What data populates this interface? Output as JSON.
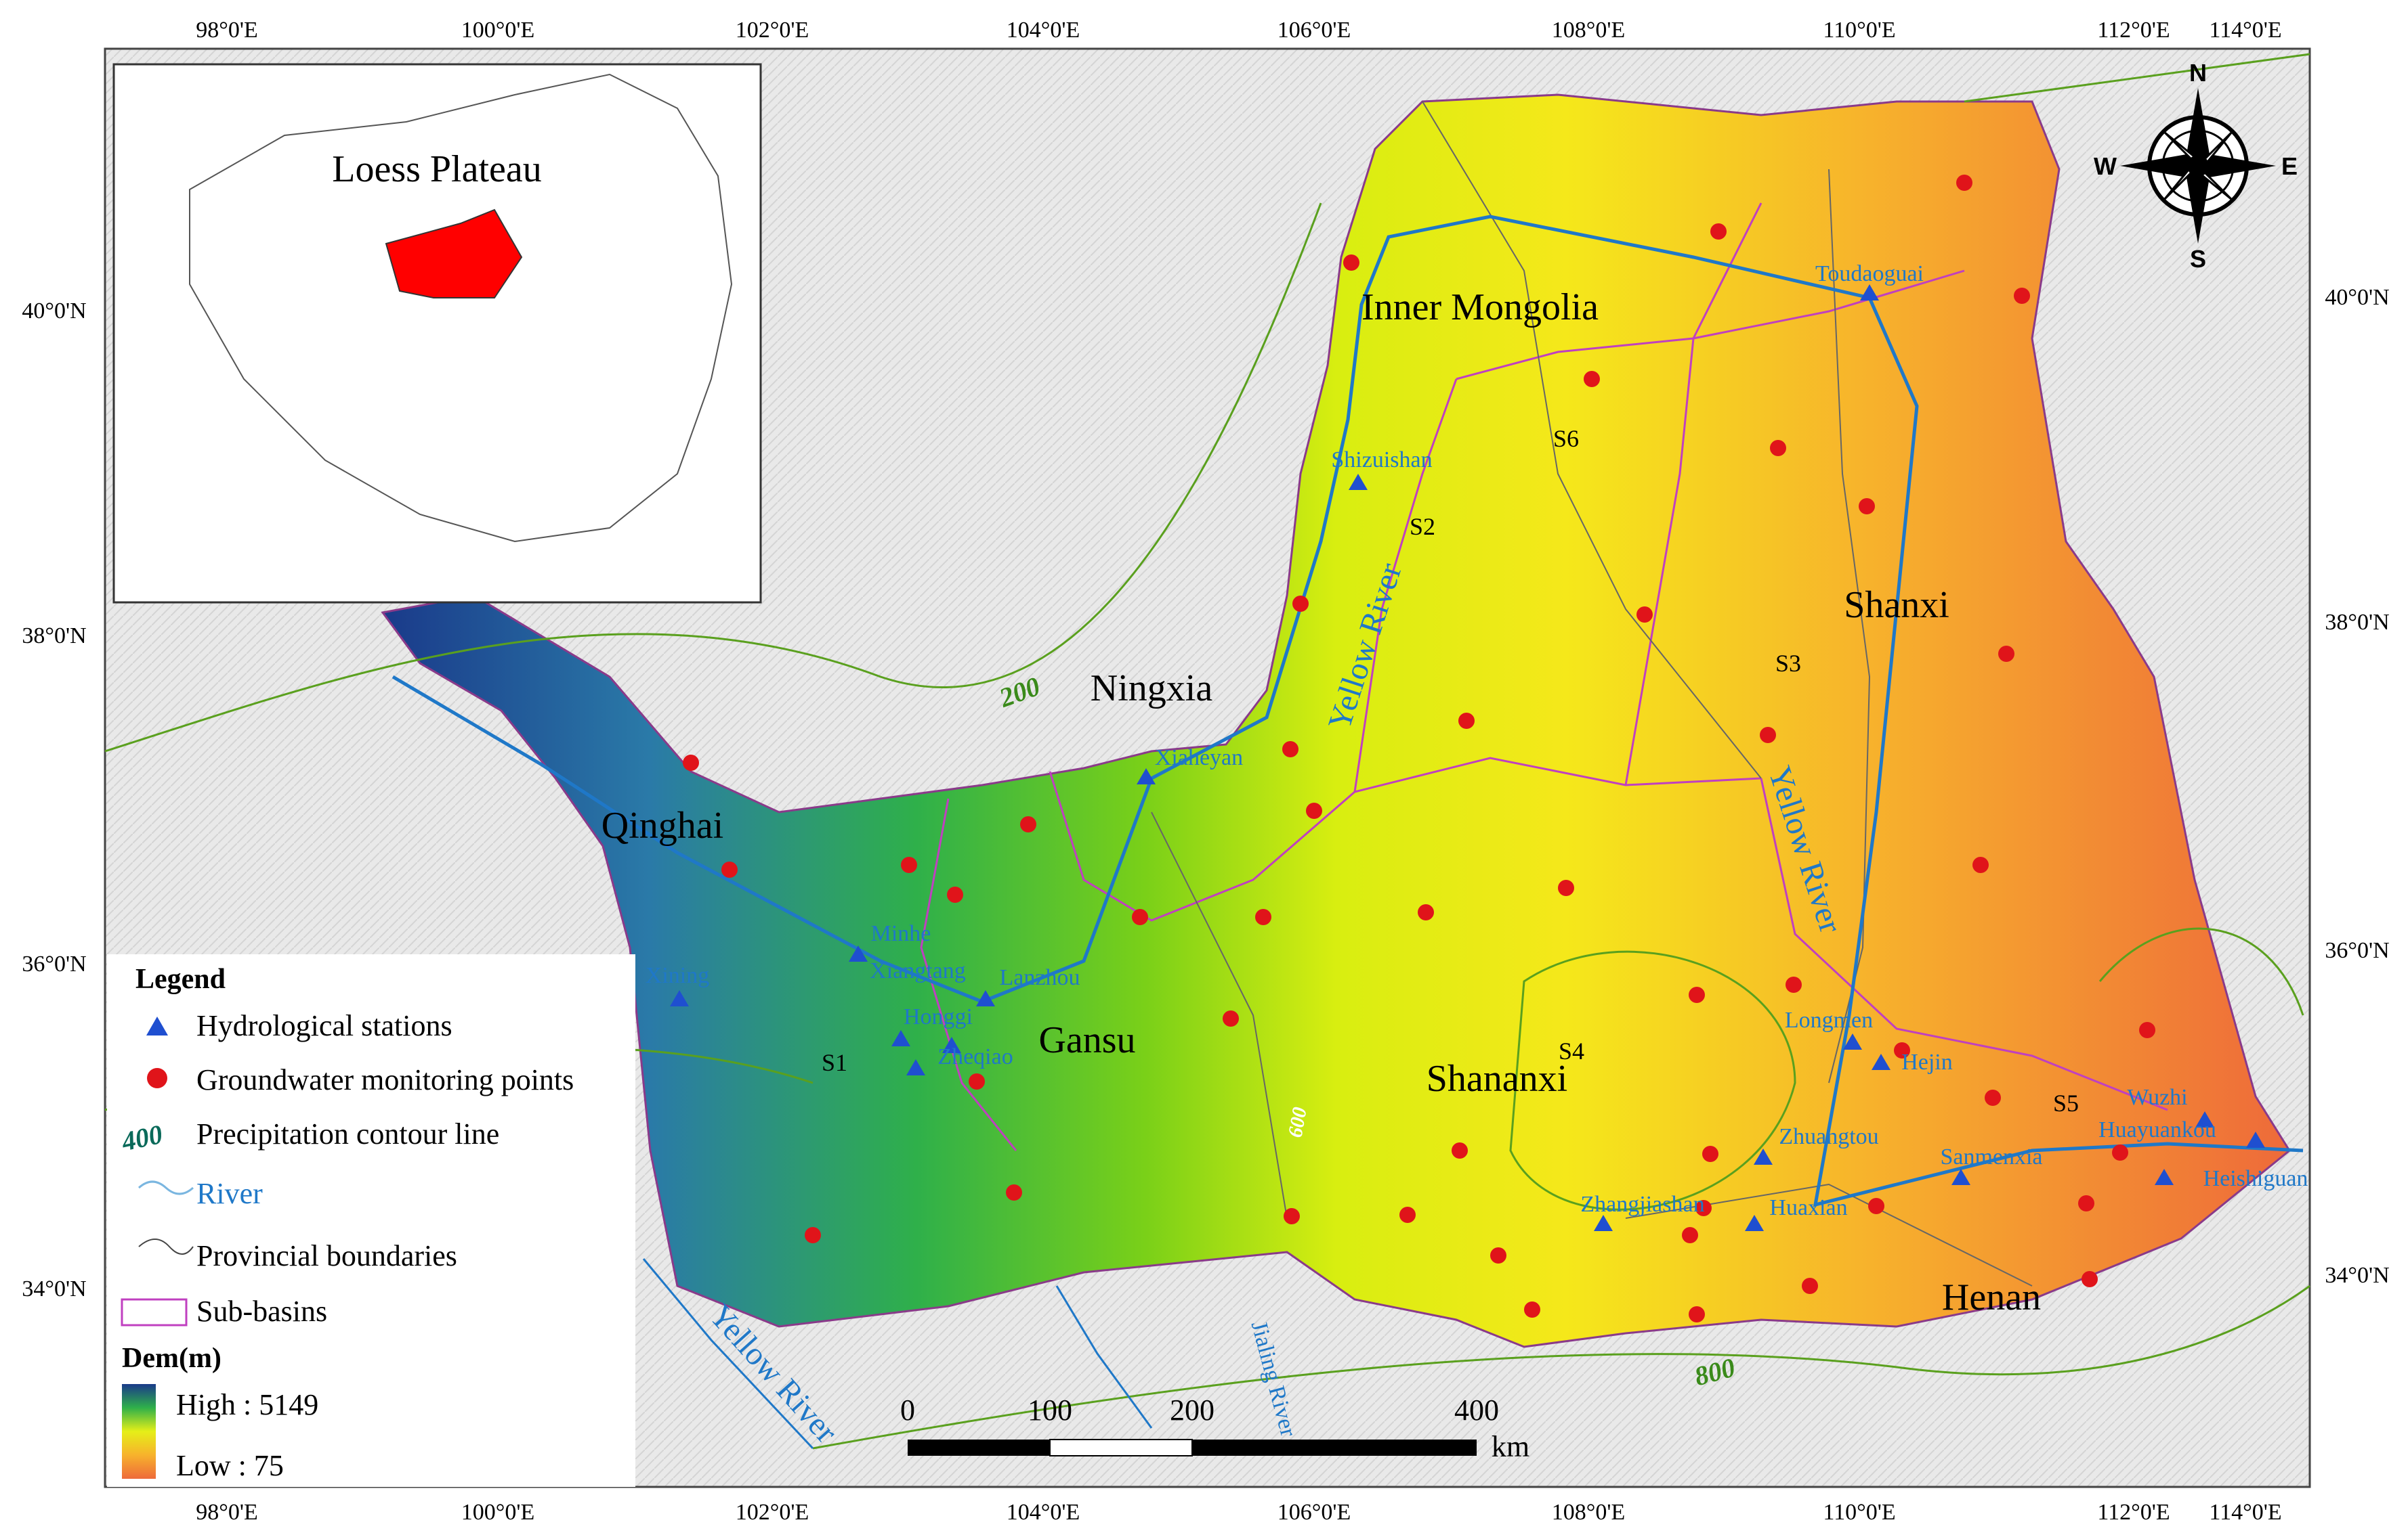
{
  "axes": {
    "top_ticks": [
      "98°0'E",
      "100°0'E",
      "102°0'E",
      "104°0'E",
      "106°0'E",
      "108°0'E",
      "110°0'E",
      "112°0'E",
      "114°0'E"
    ],
    "bottom_ticks": [
      "98°0'E",
      "100°0'E",
      "102°0'E",
      "104°0'E",
      "106°0'E",
      "108°0'E",
      "110°0'E",
      "112°0'E",
      "114°0'E"
    ],
    "left_ticks": [
      "40°0'N",
      "38°0'N",
      "36°0'N",
      "34°0'N"
    ],
    "right_ticks": [
      "40°0'N",
      "38°0'N",
      "36°0'N",
      "34°0'N"
    ]
  },
  "inset": {
    "label": "Loess Plateau"
  },
  "compass": {
    "n": "N",
    "s": "S",
    "e": "E",
    "w": "W"
  },
  "provinces": [
    {
      "name": "Inner Mongolia"
    },
    {
      "name": "Ningxia"
    },
    {
      "name": "Shanxi"
    },
    {
      "name": "Qinghai"
    },
    {
      "name": "Gansu"
    },
    {
      "name": "Shananxi"
    },
    {
      "name": "Henan"
    }
  ],
  "subbasins": [
    "S1",
    "S2",
    "S3",
    "S4",
    "S5",
    "S6"
  ],
  "rivers": [
    {
      "name": "Yellow River"
    },
    {
      "name": "Yellow River"
    },
    {
      "name": "Yellow River"
    },
    {
      "name": "Jialing River"
    }
  ],
  "stations": [
    {
      "name": "Toudaoguai"
    },
    {
      "name": "Shizuishan"
    },
    {
      "name": "Xiaheyan"
    },
    {
      "name": "Minhe"
    },
    {
      "name": "Xiangtang"
    },
    {
      "name": "Lanzhou"
    },
    {
      "name": "Honggi"
    },
    {
      "name": "Zheqiao"
    },
    {
      "name": "Xining"
    },
    {
      "name": "Longmen"
    },
    {
      "name": "Hejin"
    },
    {
      "name": "Zhuangtou"
    },
    {
      "name": "Zhangjiashan"
    },
    {
      "name": "Huaxian"
    },
    {
      "name": "Sanmenxia"
    },
    {
      "name": "Wuzhi"
    },
    {
      "name": "Huayuankou"
    },
    {
      "name": "Heishiguan"
    }
  ],
  "contours": [
    "200",
    "400",
    "800",
    "600"
  ],
  "scalebar": {
    "ticks": [
      "0",
      "100",
      "200",
      "400"
    ],
    "unit": "km"
  },
  "legend": {
    "title": "Legend",
    "items": [
      {
        "label": "Hydrological stations",
        "color": "#1f4fd0"
      },
      {
        "label": "Groundwater monitoring points",
        "color": "#e0141a"
      },
      {
        "label": "Precipitation contour line",
        "sample": "400"
      },
      {
        "label": "River",
        "color": "#1f78c8"
      },
      {
        "label": "Provincial boundaries"
      },
      {
        "label": "Sub-basins",
        "color": "#c040c0"
      }
    ],
    "dem_title": "Dem(m)",
    "dem_high": "High : 5149",
    "dem_low": "Low : 75"
  },
  "colors": {
    "accent_red": "#e0141a",
    "station_blue": "#1f4fd0",
    "contour_green": "#4a9a1a"
  }
}
